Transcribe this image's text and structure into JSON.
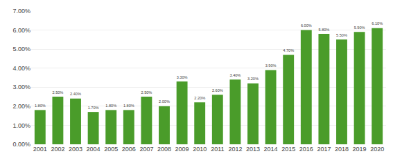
{
  "chart_data": {
    "type": "bar",
    "categories": [
      "2001",
      "2002",
      "2003",
      "2004",
      "2005",
      "2006",
      "2007",
      "2008",
      "2009",
      "2010",
      "2011",
      "2012",
      "2013",
      "2014",
      "2015",
      "2016",
      "2017",
      "2018",
      "2019",
      "2020"
    ],
    "values": [
      1.8,
      2.5,
      2.4,
      1.7,
      1.8,
      1.8,
      2.5,
      2.0,
      3.3,
      2.2,
      2.6,
      3.4,
      3.2,
      3.9,
      4.7,
      6.0,
      5.8,
      5.5,
      5.9,
      6.1
    ],
    "value_labels": [
      "1.80%",
      "2.50%",
      "2.40%",
      "1.70%",
      "1.80%",
      "1.80%",
      "2.50%",
      "2.00%",
      "3.30%",
      "2.20%",
      "2.60%",
      "3.40%",
      "3.20%",
      "3.90%",
      "4.70%",
      "6.00%",
      "5.80%",
      "5.50%",
      "5.90%",
      "6.10%"
    ],
    "data_labels": true,
    "color": "#4a9c2a",
    "ylim": [
      0,
      7.0
    ],
    "yticks": [
      {
        "value": 0.0,
        "label": "0.00%"
      },
      {
        "value": 1.0,
        "label": "1.00%"
      },
      {
        "value": 2.0,
        "label": "2.00%"
      },
      {
        "value": 3.0,
        "label": "3.00%"
      },
      {
        "value": 4.0,
        "label": "4.00%"
      },
      {
        "value": 5.0,
        "label": "5.00%"
      },
      {
        "value": 6.0,
        "label": "6.00%"
      },
      {
        "value": 7.0,
        "label": "7.00%"
      }
    ],
    "grid": true
  }
}
